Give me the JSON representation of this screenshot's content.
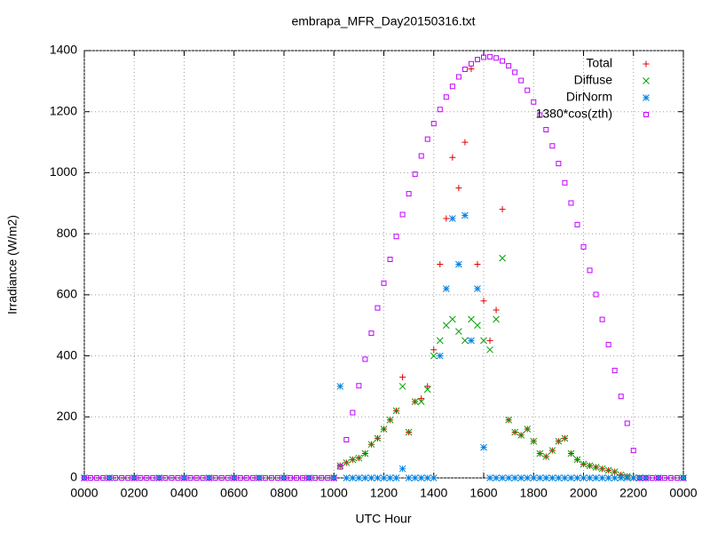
{
  "chart_data": {
    "type": "scatter",
    "title": "embrapa_MFR_Day20150316.txt",
    "x_label": "UTC Hour",
    "y_label": "Irradiance (W/m2)",
    "xlim": [
      0,
      24
    ],
    "xticks": [
      {
        "value": 0,
        "label": "0000"
      },
      {
        "value": 2,
        "label": "0200"
      },
      {
        "value": 4,
        "label": "0400"
      },
      {
        "value": 6,
        "label": "0600"
      },
      {
        "value": 8,
        "label": "0800"
      },
      {
        "value": 10,
        "label": "1000"
      },
      {
        "value": 12,
        "label": "1200"
      },
      {
        "value": 14,
        "label": "1400"
      },
      {
        "value": 16,
        "label": "1600"
      },
      {
        "value": 18,
        "label": "1800"
      },
      {
        "value": 20,
        "label": "2000"
      },
      {
        "value": 22,
        "label": "2200"
      },
      {
        "value": 24,
        "label": "0000"
      }
    ],
    "ylim": [
      0,
      1400
    ],
    "yticks": [
      0,
      200,
      400,
      600,
      800,
      1000,
      1200,
      1400
    ],
    "grid": true,
    "legend": "top-right",
    "series": [
      {
        "name": "Total",
        "color": "#e00000",
        "marker": "plus",
        "x": [
          0,
          1,
          2,
          3,
          4,
          5,
          6,
          7,
          8,
          9,
          10,
          10.25,
          10.5,
          10.75,
          11,
          11.25,
          11.5,
          11.75,
          12,
          12.25,
          12.5,
          12.75,
          13,
          13.25,
          13.5,
          13.75,
          14,
          14.25,
          14.5,
          14.75,
          15,
          15.25,
          15.5,
          15.75,
          16,
          16.25,
          16.5,
          16.75,
          17,
          17.25,
          17.5,
          17.75,
          18,
          18.25,
          18.5,
          18.75,
          19,
          19.25,
          19.5,
          19.75,
          20,
          20.25,
          20.5,
          20.75,
          21,
          21.25,
          21.5,
          21.75,
          22,
          22.25,
          22.5,
          23,
          24
        ],
        "values": [
          0,
          0,
          0,
          0,
          0,
          0,
          0,
          0,
          0,
          0,
          0,
          40,
          50,
          60,
          65,
          80,
          110,
          130,
          160,
          190,
          220,
          330,
          150,
          250,
          260,
          300,
          420,
          700,
          850,
          1050,
          950,
          1100,
          1340,
          700,
          580,
          450,
          550,
          880,
          190,
          150,
          140,
          160,
          120,
          80,
          70,
          90,
          120,
          130,
          80,
          60,
          45,
          40,
          35,
          30,
          25,
          20,
          10,
          5,
          0,
          0,
          0,
          0,
          0
        ]
      },
      {
        "name": "Diffuse",
        "color": "#00a000",
        "marker": "cross",
        "x": [
          0,
          1,
          2,
          3,
          4,
          5,
          6,
          7,
          8,
          9,
          10,
          10.25,
          10.5,
          10.75,
          11,
          11.25,
          11.5,
          11.75,
          12,
          12.25,
          12.5,
          12.75,
          13,
          13.25,
          13.5,
          13.75,
          14,
          14.25,
          14.5,
          14.75,
          15,
          15.25,
          15.5,
          15.75,
          16,
          16.25,
          16.5,
          16.75,
          17,
          17.25,
          17.5,
          17.75,
          18,
          18.25,
          18.5,
          18.75,
          19,
          19.25,
          19.5,
          19.75,
          20,
          20.25,
          20.5,
          20.75,
          21,
          21.25,
          21.5,
          21.75,
          22,
          22.25,
          22.5,
          23,
          24
        ],
        "values": [
          0,
          0,
          0,
          0,
          0,
          0,
          0,
          0,
          0,
          0,
          0,
          40,
          50,
          60,
          65,
          80,
          110,
          130,
          160,
          190,
          220,
          300,
          150,
          250,
          250,
          290,
          400,
          450,
          500,
          520,
          480,
          450,
          520,
          500,
          450,
          420,
          520,
          720,
          190,
          150,
          140,
          160,
          120,
          80,
          70,
          90,
          120,
          130,
          80,
          60,
          45,
          40,
          35,
          30,
          25,
          20,
          10,
          5,
          0,
          0,
          0,
          0,
          0
        ]
      },
      {
        "name": "DirNorm",
        "color": "#0080e0",
        "marker": "star",
        "x": [
          0,
          1,
          2,
          3,
          4,
          5,
          6,
          7,
          8,
          9,
          10,
          10.25,
          10.5,
          10.75,
          11,
          11.25,
          11.5,
          11.75,
          12,
          12.25,
          12.5,
          12.75,
          13,
          13.25,
          13.5,
          13.75,
          14,
          14.25,
          14.5,
          14.75,
          15,
          15.25,
          15.5,
          15.75,
          16,
          16.25,
          16.5,
          16.75,
          17,
          17.25,
          17.5,
          17.75,
          18,
          18.25,
          18.5,
          18.75,
          19,
          19.25,
          19.5,
          19.75,
          20,
          20.25,
          20.5,
          20.75,
          21,
          21.25,
          21.5,
          21.75,
          22,
          22.25,
          22.5,
          23,
          24
        ],
        "values": [
          0,
          0,
          0,
          0,
          0,
          0,
          0,
          0,
          0,
          0,
          0,
          300,
          0,
          0,
          0,
          0,
          0,
          0,
          0,
          0,
          0,
          30,
          0,
          0,
          0,
          0,
          0,
          400,
          620,
          850,
          700,
          860,
          450,
          620,
          100,
          0,
          0,
          0,
          0,
          0,
          0,
          0,
          0,
          0,
          0,
          0,
          0,
          0,
          0,
          0,
          0,
          0,
          0,
          0,
          0,
          0,
          0,
          0,
          0,
          0,
          0,
          0,
          0
        ]
      },
      {
        "name": "1380*cos(zth)",
        "color": "#c000ff",
        "marker": "square",
        "x": [
          0,
          0.25,
          0.5,
          0.75,
          1,
          1.25,
          1.5,
          1.75,
          2,
          2.25,
          2.5,
          2.75,
          3,
          3.25,
          3.5,
          3.75,
          4,
          4.25,
          4.5,
          4.75,
          5,
          5.25,
          5.5,
          5.75,
          6,
          6.25,
          6.5,
          6.75,
          7,
          7.25,
          7.5,
          7.75,
          8,
          8.25,
          8.5,
          8.75,
          9,
          9.25,
          9.5,
          9.75,
          10,
          10.25,
          10.5,
          10.75,
          11,
          11.25,
          11.5,
          11.75,
          12,
          12.25,
          12.5,
          12.75,
          13,
          13.25,
          13.5,
          13.75,
          14,
          14.25,
          14.5,
          14.75,
          15,
          15.25,
          15.5,
          15.75,
          16,
          16.25,
          16.5,
          16.75,
          17,
          17.25,
          17.5,
          17.75,
          18,
          18.25,
          18.5,
          18.75,
          19,
          19.25,
          19.5,
          19.75,
          20,
          20.25,
          20.5,
          20.75,
          21,
          21.25,
          21.5,
          21.75,
          22,
          22.25,
          22.5,
          22.75,
          23,
          23.25,
          23.5,
          23.75,
          24
        ],
        "values": [
          0,
          0,
          0,
          0,
          0,
          0,
          0,
          0,
          0,
          0,
          0,
          0,
          0,
          0,
          0,
          0,
          0,
          0,
          0,
          0,
          0,
          0,
          0,
          0,
          0,
          0,
          0,
          0,
          0,
          0,
          0,
          0,
          0,
          0,
          0,
          0,
          0,
          0,
          0,
          0,
          0,
          36,
          125,
          214,
          302,
          389,
          474,
          557,
          638,
          716,
          791,
          863,
          931,
          995,
          1055,
          1110,
          1161,
          1207,
          1248,
          1283,
          1314,
          1339,
          1357,
          1371,
          1378,
          1380,
          1376,
          1366,
          1350,
          1329,
          1302,
          1270,
          1232,
          1189,
          1141,
          1088,
          1030,
          967,
          901,
          830,
          757,
          680,
          601,
          519,
          437,
          352,
          267,
          179,
          90,
          0,
          0,
          0,
          0,
          0,
          0,
          0,
          0
        ]
      }
    ]
  }
}
